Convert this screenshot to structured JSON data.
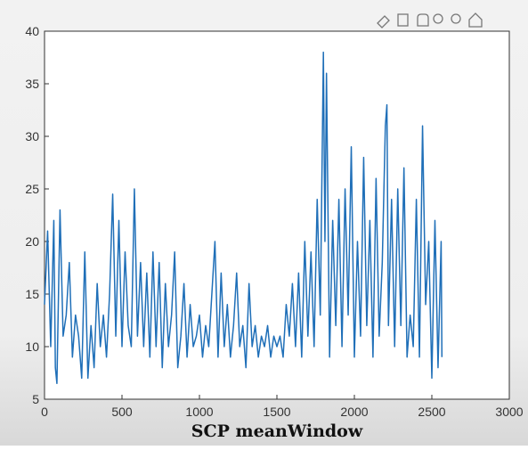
{
  "chart_data": {
    "type": "line",
    "xlabel": "SCP meanWindow",
    "color": "#1f6fb8",
    "x": [
      0,
      20,
      40,
      60,
      70,
      80,
      100,
      120,
      140,
      160,
      180,
      200,
      220,
      240,
      260,
      280,
      300,
      320,
      340,
      360,
      380,
      400,
      420,
      440,
      460,
      480,
      500,
      520,
      540,
      560,
      580,
      600,
      620,
      640,
      660,
      680,
      700,
      720,
      740,
      760,
      780,
      800,
      820,
      840,
      860,
      880,
      900,
      920,
      940,
      960,
      980,
      1000,
      1020,
      1040,
      1060,
      1080,
      1100,
      1120,
      1140,
      1160,
      1180,
      1200,
      1220,
      1240,
      1260,
      1280,
      1300,
      1320,
      1340,
      1360,
      1380,
      1400,
      1420,
      1440,
      1460,
      1480,
      1500,
      1520,
      1540,
      1560,
      1580,
      1600,
      1620,
      1640,
      1660,
      1680,
      1700,
      1720,
      1740,
      1760,
      1780,
      1800,
      1810,
      1820,
      1840,
      1860,
      1880,
      1900,
      1920,
      1940,
      1960,
      1980,
      2000,
      2020,
      2040,
      2060,
      2080,
      2100,
      2120,
      2140,
      2160,
      2180,
      2200,
      2210,
      2220,
      2240,
      2260,
      2280,
      2300,
      2320,
      2340,
      2360,
      2380,
      2400,
      2420,
      2440,
      2460,
      2480,
      2500,
      2520,
      2540,
      2560,
      2565
    ],
    "values": [
      14,
      21,
      10,
      22,
      8,
      6.5,
      23,
      11,
      13,
      18,
      9,
      13,
      11,
      7,
      19,
      7,
      12,
      8,
      16,
      10,
      13,
      9,
      15,
      24.5,
      11,
      22,
      10,
      19,
      12,
      10,
      25,
      11,
      18,
      10,
      17,
      9,
      19,
      10,
      18,
      8,
      16,
      10,
      13,
      19,
      8,
      11,
      16,
      9,
      14,
      10,
      11,
      13,
      9,
      12,
      10,
      15,
      20,
      9,
      17,
      10,
      14,
      9,
      12,
      17,
      10,
      12,
      8,
      16,
      10,
      12,
      9,
      11,
      10,
      12,
      9,
      11,
      10,
      11,
      9,
      14,
      11,
      16,
      10,
      17,
      9,
      20,
      11,
      19,
      10,
      24,
      13,
      38,
      20,
      36,
      9,
      22,
      12,
      24,
      10,
      25,
      13,
      29,
      9,
      20,
      11,
      28,
      12,
      22,
      9,
      26,
      11,
      18,
      31,
      33,
      12,
      24,
      10,
      25,
      12,
      27,
      9,
      13,
      10,
      24,
      9,
      31,
      14,
      20,
      7,
      22,
      8,
      20,
      9
    ],
    "xlim": [
      0,
      3000
    ],
    "xticks": [
      0,
      500,
      1000,
      1500,
      2000,
      2500,
      3000
    ],
    "ylim": [
      5,
      40
    ],
    "yticks": [
      5,
      10,
      15,
      20,
      25,
      30,
      35,
      40
    ]
  }
}
